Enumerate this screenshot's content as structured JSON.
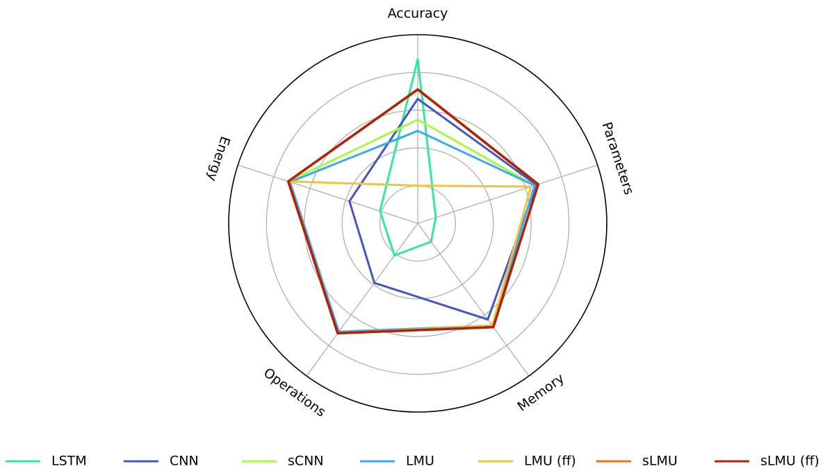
{
  "chart_data": {
    "type": "radar",
    "categories": [
      "Accuracy",
      "Parameters",
      "Memory",
      "Operations",
      "Energy"
    ],
    "ylim": [
      0,
      1
    ],
    "yticks": [
      0.2,
      0.4,
      0.6,
      0.8
    ],
    "grid": true,
    "legend": "bottom",
    "series": [
      {
        "name": "LSTM",
        "color": "#30e8a0",
        "values": [
          0.87,
          0.1,
          0.12,
          0.21,
          0.21
        ]
      },
      {
        "name": "CNN",
        "color": "#4454c4",
        "values": [
          0.66,
          0.66,
          0.63,
          0.39,
          0.38
        ]
      },
      {
        "name": "sCNN",
        "color": "#a4fc3c",
        "values": [
          0.55,
          0.65,
          0.67,
          0.71,
          0.72
        ]
      },
      {
        "name": "LMU",
        "color": "#36aaf9",
        "values": [
          0.49,
          0.65,
          0.67,
          0.71,
          0.71
        ]
      },
      {
        "name": "LMU (ff)",
        "color": "#f0c43a",
        "values": [
          0.2,
          0.63,
          0.67,
          0.72,
          0.72
        ]
      },
      {
        "name": "sLMU",
        "color": "#e8701f",
        "values": [
          0.71,
          0.67,
          0.68,
          0.72,
          0.72
        ]
      },
      {
        "name": "sLMU (ff)",
        "color": "#b52005",
        "values": [
          0.71,
          0.67,
          0.68,
          0.72,
          0.72
        ]
      }
    ]
  }
}
